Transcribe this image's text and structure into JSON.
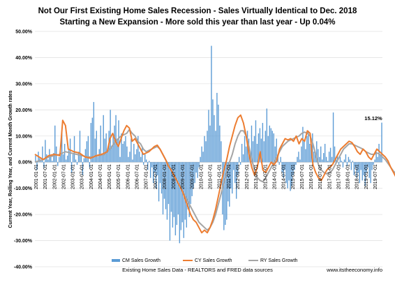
{
  "chart_data": {
    "type": "bar",
    "title": "Not Our First Existing Home Sales Recession - Sales Virtually Identical to Dec. 2018",
    "subtitle": "Starting a New Expansion - More sold this year than last year - Up 0.04%",
    "ylabel": "Current Year, Rolling Year, and Current Month Growth rates",
    "xlabel": "Existing Home Sales Data - REALTORS and FRED data sources",
    "source_note": "www.itstheeconomy.info",
    "annotation": "15.12%",
    "ylim": [
      -40,
      50
    ],
    "yticks": [
      "50.00%",
      "40.00%",
      "30.00%",
      "20.00%",
      "10.00%",
      "0.00%",
      "-10.00%",
      "-20.00%",
      "-30.00%",
      "-40.00%"
    ],
    "ytick_values": [
      50,
      40,
      30,
      20,
      10,
      0,
      -10,
      -20,
      -30,
      -40
    ],
    "x_tick_labels": [
      "2001-01-01",
      "2001-07-01",
      "2002-01-01",
      "2002-07-01",
      "2003-01-01",
      "2003-07-01",
      "2004-01-01",
      "2004-07-01",
      "2005-01-01",
      "2005-07-01",
      "2006-01-01",
      "2006-07-01",
      "2007-01-01",
      "2007-07-01",
      "2008-01-01",
      "2008-07-01",
      "2009-01-01",
      "2009-07-01",
      "2010-01-01",
      "2010-07-01",
      "2011-01-01",
      "2011-07-01",
      "2012-01-01",
      "2012-07-01",
      "2013-01-01",
      "2013-07-01",
      "2014-01-01",
      "2014-07-01",
      "2015-01-01",
      "2015-07-01",
      "2016-01-01",
      "2016-07-01",
      "2017-01-01",
      "2017-07-01",
      "2018-01-01",
      "2018-07-01",
      "2019-01-01",
      "2019-07-01"
    ],
    "grid": true,
    "legend_position": "bottom",
    "series": [
      {
        "name": "CM Sales Growth",
        "type": "bar",
        "color": "#5B9BD5",
        "values": [
          2.5,
          -3.0,
          4.0,
          1.5,
          0.5,
          6.0,
          -2.0,
          8.5,
          3.0,
          1.0,
          5.0,
          2.0,
          0.5,
          3.5,
          14.0,
          6.0,
          -1.5,
          2.0,
          4.0,
          12.0,
          3.0,
          7.0,
          1.0,
          2.5,
          5.0,
          9.0,
          -4.0,
          3.0,
          10.0,
          1.0,
          -1.0,
          4.0,
          12.0,
          3.0,
          -5.0,
          1.5,
          5.0,
          8.0,
          10.0,
          -2.0,
          15.0,
          17.0,
          23.0,
          9.0,
          12.0,
          2.0,
          5.0,
          14.0,
          3.0,
          18.0,
          9.0,
          11.0,
          4.0,
          12.0,
          20.0,
          6.0,
          10.0,
          14.0,
          18.0,
          9.0,
          16.0,
          2.0,
          11.0,
          7.0,
          8.0,
          10.0,
          6.0,
          2.0,
          4.0,
          9.0,
          1.0,
          7.0,
          3.0,
          5.0,
          10.0,
          4.0,
          2.0,
          6.0,
          -1.0,
          3.0,
          1.0,
          -3.0,
          0.5,
          -6.0,
          -2.0,
          -8.0,
          -4.0,
          -10.0,
          -5.0,
          -15.0,
          -8.0,
          -12.0,
          -20.0,
          -14.0,
          -18.0,
          -22.0,
          -16.0,
          -30.0,
          -19.0,
          -25.0,
          -21.0,
          -28.0,
          -24.0,
          -20.0,
          -31.0,
          -26.0,
          -23.0,
          -29.0,
          -22.0,
          -25.0,
          -18.0,
          -21.0,
          -16.0,
          -13.0,
          -10.0,
          -8.0,
          -4.0,
          -6.0,
          -2.0,
          2.0,
          6.0,
          4.0,
          10.0,
          8.0,
          12.0,
          20.0,
          14.0,
          44.5,
          24.0,
          18.0,
          12.0,
          26.5,
          22.0,
          14.0,
          8.0,
          -20.0,
          -26.0,
          -24.0,
          -22.0,
          -15.0,
          -17.0,
          -10.0,
          -12.0,
          -3.0,
          -8.0,
          -14.0,
          -5.0,
          2.0,
          -1.0,
          7.0,
          3.0,
          10.0,
          6.0,
          12.0,
          9.0,
          4.0,
          14.0,
          8.0,
          10.0,
          16.0,
          7.0,
          11.0,
          13.0,
          9.0,
          15.0,
          8.0,
          12.0,
          20.5,
          10.0,
          14.0,
          13.0,
          12.0,
          11.0,
          6.0,
          9.0,
          3.0,
          -1.0,
          2.0,
          -4.0,
          -6.0,
          -3.0,
          -8.0,
          -10.0,
          -7.0,
          -11.0,
          -9.0,
          -5.0,
          -3.0,
          -1.0,
          2.0,
          4.0,
          1.0,
          6.0,
          13.5,
          8.0,
          5.0,
          10.0,
          12.0,
          7.0,
          9.0,
          11.0,
          4.0,
          3.0,
          8.0,
          5.0,
          2.0,
          6.0,
          1.0,
          3.5,
          7.0,
          2.0,
          0.5,
          4.0,
          5.5,
          2.0,
          19.0,
          6.0,
          1.0,
          3.0,
          -1.0,
          2.0,
          0.5,
          -2.0,
          1.0,
          3.0,
          -1.5,
          2.0,
          1.0,
          -3.0,
          0.5,
          -5.0,
          -2.0,
          -6.0,
          -4.0,
          -8.0,
          -3.0,
          -7.0,
          -5.0,
          -9.0,
          -4.0,
          -2.0,
          -6.0,
          -8.0,
          -3.0,
          -1.0,
          1.0,
          4.0,
          2.0,
          7.0,
          3.0,
          15.12
        ]
      },
      {
        "name": "CY Sales Growth",
        "type": "line",
        "color": "#ED7D31",
        "points": [
          [
            0,
            3
          ],
          [
            6,
            1
          ],
          [
            10,
            2.5
          ],
          [
            14,
            3
          ],
          [
            18,
            2.5
          ],
          [
            20,
            16
          ],
          [
            22,
            14
          ],
          [
            24,
            5
          ],
          [
            28,
            4
          ],
          [
            32,
            3.5
          ],
          [
            36,
            2
          ],
          [
            40,
            1.5
          ],
          [
            44,
            2.5
          ],
          [
            48,
            3
          ],
          [
            52,
            4
          ],
          [
            54,
            9
          ],
          [
            56,
            11
          ],
          [
            58,
            8
          ],
          [
            60,
            6
          ],
          [
            62,
            9
          ],
          [
            64,
            12
          ],
          [
            66,
            14
          ],
          [
            68,
            13
          ],
          [
            70,
            8
          ],
          [
            72,
            9
          ],
          [
            74,
            7
          ],
          [
            76,
            5
          ],
          [
            78,
            3
          ],
          [
            80,
            3.5
          ],
          [
            82,
            4
          ],
          [
            84,
            5
          ],
          [
            86,
            6
          ],
          [
            88,
            6.5
          ],
          [
            90,
            5
          ],
          [
            92,
            3
          ],
          [
            94,
            1
          ],
          [
            96,
            -1.5
          ],
          [
            98,
            -3
          ],
          [
            100,
            -5
          ],
          [
            102,
            -7
          ],
          [
            104,
            -9
          ],
          [
            106,
            -11
          ],
          [
            108,
            -14
          ],
          [
            110,
            -17
          ],
          [
            112,
            -20
          ],
          [
            114,
            -22
          ],
          [
            116,
            -23
          ],
          [
            118,
            -25
          ],
          [
            120,
            -27
          ],
          [
            122,
            -26
          ],
          [
            124,
            -27
          ],
          [
            126,
            -25
          ],
          [
            128,
            -22
          ],
          [
            130,
            -18
          ],
          [
            132,
            -13
          ],
          [
            134,
            -8
          ],
          [
            136,
            -3
          ],
          [
            138,
            1
          ],
          [
            140,
            6
          ],
          [
            142,
            10
          ],
          [
            144,
            14
          ],
          [
            146,
            17
          ],
          [
            148,
            18
          ],
          [
            150,
            15
          ],
          [
            152,
            10
          ],
          [
            154,
            3
          ],
          [
            156,
            -2
          ],
          [
            158,
            -5
          ],
          [
            160,
            -2
          ],
          [
            162,
            4
          ],
          [
            164,
            -3
          ],
          [
            166,
            -4
          ],
          [
            168,
            -2
          ],
          [
            170,
            0
          ],
          [
            172,
            -1
          ],
          [
            174,
            0.5
          ],
          [
            176,
            5
          ],
          [
            178,
            7
          ],
          [
            180,
            9
          ],
          [
            182,
            8.5
          ],
          [
            184,
            9
          ],
          [
            186,
            8
          ],
          [
            188,
            10
          ],
          [
            190,
            7
          ],
          [
            192,
            9
          ],
          [
            194,
            8
          ],
          [
            196,
            12
          ],
          [
            198,
            11
          ],
          [
            200,
            -1
          ],
          [
            202,
            -4
          ],
          [
            204,
            -6
          ],
          [
            206,
            -7
          ],
          [
            208,
            -5
          ],
          [
            210,
            -3
          ],
          [
            212,
            -2
          ],
          [
            214,
            -1
          ],
          [
            216,
            1
          ],
          [
            218,
            3
          ],
          [
            220,
            5
          ],
          [
            222,
            6
          ],
          [
            224,
            7
          ],
          [
            226,
            8
          ],
          [
            228,
            7.5
          ],
          [
            230,
            6
          ],
          [
            232,
            4
          ],
          [
            234,
            3
          ],
          [
            236,
            5
          ],
          [
            238,
            4
          ],
          [
            240,
            2
          ],
          [
            242,
            1
          ],
          [
            244,
            3
          ],
          [
            246,
            5
          ],
          [
            248,
            4
          ],
          [
            250,
            3
          ],
          [
            252,
            2
          ],
          [
            254,
            0.5
          ],
          [
            256,
            -2
          ],
          [
            258,
            -4
          ],
          [
            260,
            -6
          ],
          [
            262,
            -8
          ],
          [
            264,
            -5
          ],
          [
            266,
            -3
          ],
          [
            268,
            -4
          ],
          [
            270,
            -2
          ],
          [
            272,
            -1.5
          ],
          [
            274,
            0
          ]
        ]
      },
      {
        "name": "RY Sales Growth",
        "type": "line",
        "color": "#A5A5A5",
        "points": [
          [
            0,
            0
          ],
          [
            6,
            1
          ],
          [
            10,
            2
          ],
          [
            14,
            2.5
          ],
          [
            18,
            3
          ],
          [
            22,
            4
          ],
          [
            26,
            3.5
          ],
          [
            30,
            3
          ],
          [
            34,
            2.5
          ],
          [
            38,
            2
          ],
          [
            42,
            2
          ],
          [
            46,
            2.5
          ],
          [
            50,
            3
          ],
          [
            54,
            5
          ],
          [
            58,
            8
          ],
          [
            62,
            10
          ],
          [
            66,
            11
          ],
          [
            68,
            12.5
          ],
          [
            70,
            11
          ],
          [
            72,
            10
          ],
          [
            74,
            8
          ],
          [
            76,
            7
          ],
          [
            78,
            5
          ],
          [
            80,
            4
          ],
          [
            82,
            4.5
          ],
          [
            84,
            5
          ],
          [
            86,
            5.5
          ],
          [
            88,
            6
          ],
          [
            90,
            5
          ],
          [
            92,
            3
          ],
          [
            94,
            1
          ],
          [
            96,
            -1
          ],
          [
            98,
            -3
          ],
          [
            100,
            -5
          ],
          [
            102,
            -7
          ],
          [
            104,
            -9
          ],
          [
            106,
            -11
          ],
          [
            108,
            -13
          ],
          [
            110,
            -15
          ],
          [
            112,
            -17
          ],
          [
            114,
            -19
          ],
          [
            116,
            -21
          ],
          [
            118,
            -23
          ],
          [
            120,
            -24
          ],
          [
            122,
            -25
          ],
          [
            124,
            -26
          ],
          [
            126,
            -25
          ],
          [
            128,
            -23
          ],
          [
            130,
            -20
          ],
          [
            132,
            -16
          ],
          [
            134,
            -12
          ],
          [
            136,
            -8
          ],
          [
            138,
            -4
          ],
          [
            140,
            0
          ],
          [
            142,
            3
          ],
          [
            144,
            7
          ],
          [
            146,
            10
          ],
          [
            148,
            12
          ],
          [
            150,
            12
          ],
          [
            152,
            10
          ],
          [
            154,
            6
          ],
          [
            156,
            1
          ],
          [
            158,
            -3
          ],
          [
            160,
            -6
          ],
          [
            162,
            -7
          ],
          [
            164,
            -7.5
          ],
          [
            166,
            -6
          ],
          [
            168,
            -4
          ],
          [
            170,
            -2
          ],
          [
            172,
            0
          ],
          [
            174,
            2
          ],
          [
            176,
            4
          ],
          [
            178,
            6
          ],
          [
            180,
            7
          ],
          [
            182,
            8
          ],
          [
            184,
            8.5
          ],
          [
            186,
            9
          ],
          [
            188,
            9.5
          ],
          [
            190,
            10
          ],
          [
            192,
            11
          ],
          [
            194,
            11.5
          ],
          [
            196,
            11
          ],
          [
            198,
            10
          ],
          [
            200,
            7
          ],
          [
            202,
            3
          ],
          [
            204,
            -1
          ],
          [
            206,
            -3
          ],
          [
            208,
            -4
          ],
          [
            210,
            -4.5
          ],
          [
            212,
            -4
          ],
          [
            214,
            -3
          ],
          [
            216,
            -1
          ],
          [
            218,
            1
          ],
          [
            220,
            3
          ],
          [
            222,
            5
          ],
          [
            224,
            6
          ],
          [
            226,
            7
          ],
          [
            228,
            7
          ],
          [
            230,
            6.5
          ],
          [
            232,
            6
          ],
          [
            234,
            5.5
          ],
          [
            236,
            5
          ],
          [
            238,
            4
          ],
          [
            240,
            3.5
          ],
          [
            242,
            3
          ],
          [
            244,
            3
          ],
          [
            246,
            3.5
          ],
          [
            248,
            3
          ],
          [
            250,
            2
          ],
          [
            252,
            1
          ],
          [
            254,
            -0.5
          ],
          [
            256,
            -2
          ],
          [
            258,
            -3.5
          ],
          [
            260,
            -4.5
          ],
          [
            262,
            -5
          ],
          [
            264,
            -5
          ],
          [
            266,
            -4
          ],
          [
            268,
            -3
          ],
          [
            270,
            -2
          ],
          [
            272,
            -1
          ],
          [
            274,
            0
          ]
        ]
      }
    ]
  }
}
